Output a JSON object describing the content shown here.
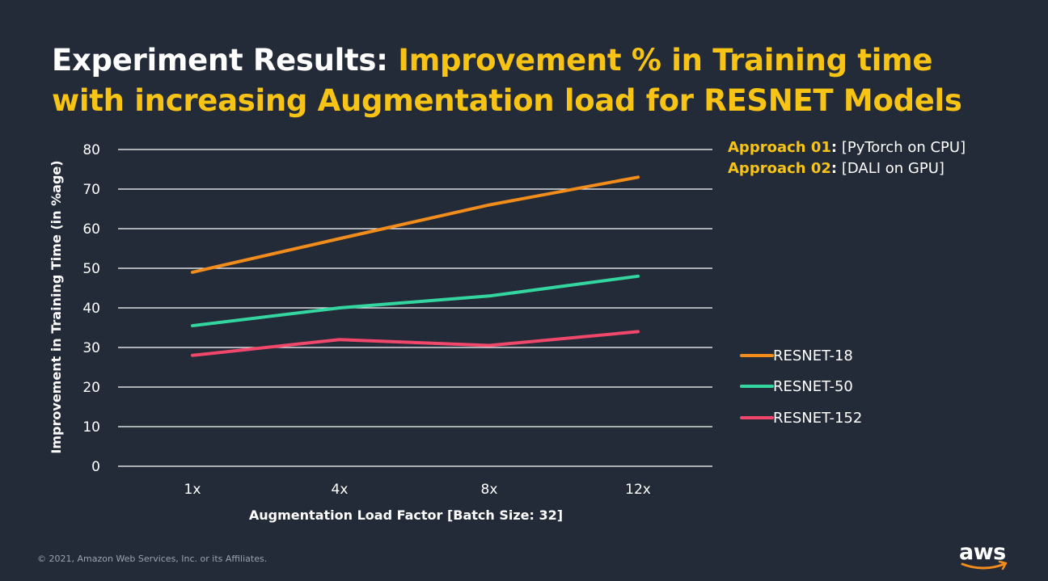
{
  "title": {
    "part1": "Experiment Results:",
    "part2_line1": "Improvement % in Training time",
    "part2_line2": "with increasing Augmentation load for RESNET Models"
  },
  "approaches": [
    {
      "key": "Approach 01",
      "value": "[PyTorch on CPU]"
    },
    {
      "key": "Approach 02",
      "value": "[DALI on GPU]"
    }
  ],
  "colors": {
    "background": "#232a38",
    "title_accent": "#f7c415",
    "resnet18": "#f28c1b",
    "resnet50": "#33d69f",
    "resnet152": "#f0476a",
    "gridline": "#ffffff"
  },
  "chart_data": {
    "type": "line",
    "title": "",
    "xlabel": "Augmentation Load Factor [Batch Size: 32]",
    "ylabel": "Improvement in Training Time (in %age)",
    "categories": [
      "1x",
      "4x",
      "8x",
      "12x"
    ],
    "ylim": [
      0,
      80
    ],
    "yticks": [
      0,
      10,
      20,
      30,
      40,
      50,
      60,
      70,
      80
    ],
    "grid": true,
    "legend_position": "right",
    "series": [
      {
        "name": "RESNET-18",
        "values": [
          49,
          57.5,
          66,
          73
        ]
      },
      {
        "name": "RESNET-50",
        "values": [
          35.5,
          40,
          43,
          48
        ]
      },
      {
        "name": "RESNET-152",
        "values": [
          28,
          32,
          30.5,
          34
        ]
      }
    ]
  },
  "footer": {
    "copyright": "© 2021, Amazon Web Services, Inc. or its Affiliates.",
    "logo_text": "aws"
  }
}
